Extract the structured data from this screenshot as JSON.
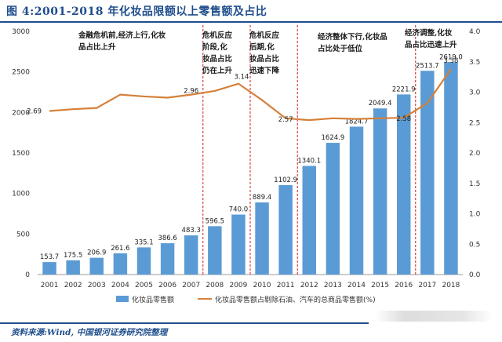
{
  "title": "图 4:2001-2018 年化妆品限额以上零售额及占比",
  "source": "资料来源:Wind, 中国银河证券研究院整理",
  "colors": {
    "bar": "#5b9bd5",
    "line": "#d5803a",
    "divider": "#cc2222",
    "title": "#1f4e8c"
  },
  "chart_data": {
    "type": "bar",
    "categories": [
      "2001",
      "2002",
      "2003",
      "2004",
      "2005",
      "2006",
      "2007",
      "2008",
      "2009",
      "2010",
      "2011",
      "2012",
      "2013",
      "2014",
      "2015",
      "2016",
      "2017",
      "2018"
    ],
    "series": [
      {
        "name": "化妆品零售额",
        "type": "bar",
        "axis": "left",
        "values": [
          153.7,
          175.5,
          206.9,
          261.6,
          335.1,
          386.6,
          483.3,
          596.5,
          740.0,
          889.4,
          1102.9,
          1340.1,
          1624.9,
          1824.7,
          2049.4,
          2221.9,
          2513.7,
          2619.0
        ],
        "labels": [
          "153.7",
          "175.5",
          "206.9",
          "261.6",
          "335.1",
          "386.6",
          "483.3",
          "596.5",
          "740.0",
          "889.4",
          "1102.9",
          "1340.1",
          "1624.9",
          "1824.7",
          "2049.4",
          "2221.9",
          "2513.7",
          "2619.0"
        ]
      },
      {
        "name": "化妆品零售额占剔除石油、汽车的总商品零售额(%)",
        "type": "line",
        "axis": "right",
        "values": [
          2.69,
          2.72,
          2.74,
          2.96,
          2.93,
          2.91,
          2.96,
          3.02,
          3.14,
          2.87,
          2.57,
          2.54,
          2.57,
          2.56,
          2.57,
          2.58,
          2.82,
          3.38
        ],
        "labelled_points": [
          {
            "index": 0,
            "text": "2.69"
          },
          {
            "index": 6,
            "text": "2.96"
          },
          {
            "index": 8,
            "text": "3.14"
          },
          {
            "index": 10,
            "text": "2.57"
          },
          {
            "index": 15,
            "text": "2.58"
          },
          {
            "index": 17,
            "text": "3.38"
          }
        ]
      }
    ],
    "y_left": {
      "min": 0,
      "max": 3000,
      "ticks": [
        "0",
        "500",
        "1000",
        "1500",
        "2000",
        "2500",
        "3000"
      ]
    },
    "y_right": {
      "min": 0,
      "max": 4,
      "ticks": [
        "0.0",
        "0.5",
        "1.0",
        "1.5",
        "2.0",
        "2.5",
        "3.0",
        "3.5",
        "4.0"
      ]
    },
    "dividers_after": [
      "2007",
      "2009",
      "2011",
      "2016"
    ],
    "annotations": [
      {
        "period": "2001-2007",
        "lines": [
          "金融危机前,经济上行,化妆",
          "品占比上升"
        ]
      },
      {
        "period": "2007-2009",
        "lines": [
          "危机反应",
          "阶段,化",
          "妆品占比",
          "仍在上升"
        ]
      },
      {
        "period": "2009-2011",
        "lines": [
          "危机反应",
          "后期,化",
          "妆品占比",
          "迅速下降"
        ]
      },
      {
        "period": "2011-2016",
        "lines": [
          "经济整体下行,化妆品",
          "占比处于低位"
        ]
      },
      {
        "period": "2016-2018",
        "lines": [
          "经济调整,化妆",
          "品占比迅速上升"
        ]
      }
    ],
    "legend": {
      "placement": "bottom",
      "items": [
        "化妆品零售额",
        "化妆品零售额占剔除石油、汽车的总商品零售额(%)"
      ]
    },
    "grid": false
  }
}
